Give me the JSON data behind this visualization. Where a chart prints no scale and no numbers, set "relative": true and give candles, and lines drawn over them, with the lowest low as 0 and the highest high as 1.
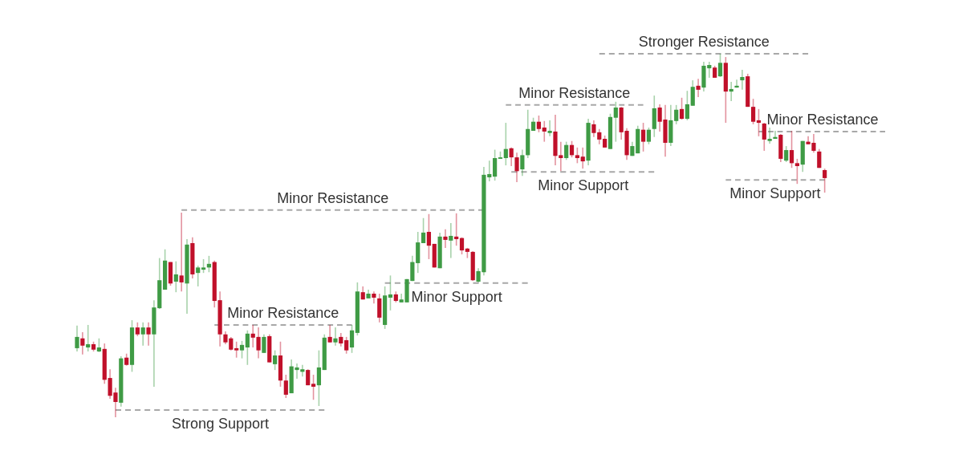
{
  "chart_data": {
    "type": "candlestick",
    "relative": true,
    "line_style": "dashed",
    "categories": [
      null,
      null,
      null,
      null,
      null,
      null,
      null,
      null,
      null,
      null,
      null,
      null,
      null,
      null,
      null,
      null,
      null,
      null,
      null,
      null,
      null,
      null,
      null,
      null,
      null,
      null,
      null,
      null,
      null,
      null,
      null,
      null,
      null,
      null,
      null,
      null,
      null,
      null,
      null,
      null,
      null,
      null,
      null,
      null,
      null,
      null,
      null,
      null,
      null,
      null,
      null,
      null,
      null,
      null,
      null,
      null,
      null,
      null,
      null,
      null,
      null,
      null,
      null,
      null,
      null,
      null,
      null,
      null,
      null,
      null,
      null,
      null,
      null,
      null,
      null,
      null,
      null,
      null,
      null,
      null,
      null,
      null,
      null,
      null,
      null,
      null,
      null,
      null,
      null,
      null,
      null,
      null,
      null,
      null,
      null,
      null,
      null,
      null,
      null,
      null,
      null,
      null,
      null,
      null,
      null,
      null,
      null,
      null,
      null,
      null,
      null,
      null,
      null,
      null,
      null,
      null,
      null,
      null,
      null,
      null,
      null,
      null,
      null,
      null,
      null,
      null,
      null,
      null,
      null,
      null,
      null,
      null,
      null,
      null,
      null,
      null,
      null,
      null,
      null,
      null,
      null,
      null,
      null,
      null,
      null,
      null,
      null,
      null
    ],
    "ohlc": [
      [
        0.19,
        0.252,
        0.181,
        0.221
      ],
      [
        0.217,
        0.234,
        0.173,
        0.197
      ],
      [
        0.192,
        0.254,
        0.181,
        0.201
      ],
      [
        0.201,
        0.208,
        0.181,
        0.186
      ],
      [
        0.181,
        0.217,
        0.179,
        0.192
      ],
      [
        0.188,
        0.203,
        0.092,
        0.103
      ],
      [
        0.108,
        0.132,
        0.051,
        0.059
      ],
      [
        0.068,
        0.081,
        0,
        0.042
      ],
      [
        0.04,
        0.168,
        0.029,
        0.162
      ],
      [
        0.164,
        0.175,
        0.142,
        0.144
      ],
      [
        0.144,
        0.267,
        0.125,
        0.247
      ],
      [
        0.247,
        0.261,
        0.223,
        0.228
      ],
      [
        0.228,
        0.261,
        0.197,
        0.247
      ],
      [
        0.247,
        0.261,
        0.197,
        0.228
      ],
      [
        0.228,
        0.322,
        0.084,
        0.302
      ],
      [
        0.3,
        0.438,
        0.298,
        0.377
      ],
      [
        0.351,
        0.462,
        0.351,
        0.431
      ],
      [
        0.427,
        0.427,
        0.362,
        0.368
      ],
      [
        0.373,
        0.429,
        0.344,
        0.393
      ],
      [
        0.39,
        0.563,
        0.346,
        0.371
      ],
      [
        0.368,
        0.49,
        0.285,
        0.475
      ],
      [
        0.479,
        0.495,
        0.382,
        0.393
      ],
      [
        0.397,
        0.417,
        0.36,
        0.412
      ],
      [
        0.406,
        0.435,
        0.397,
        0.412
      ],
      [
        0.412,
        0.444,
        0.399,
        0.422
      ],
      [
        0.427,
        0.431,
        0.302,
        0.32
      ],
      [
        0.322,
        0.346,
        0.195,
        0.228
      ],
      [
        0.228,
        0.236,
        0.201,
        0.206
      ],
      [
        0.217,
        0.221,
        0.184,
        0.186
      ],
      [
        0.19,
        0.208,
        0.164,
        0.184
      ],
      [
        0.184,
        0.21,
        0.162,
        0.199
      ],
      [
        0.192,
        0.239,
        0.144,
        0.23
      ],
      [
        0.23,
        0.254,
        0.192,
        0.219
      ],
      [
        0.221,
        0.247,
        0.162,
        0.184
      ],
      [
        0.177,
        0.228,
        0.177,
        0.221
      ],
      [
        0.223,
        0.228,
        0.151,
        0.151
      ],
      [
        0.146,
        0.184,
        0.13,
        0.17
      ],
      [
        0.17,
        0.208,
        0.084,
        0.101
      ],
      [
        0.101,
        0.117,
        0.053,
        0.062
      ],
      [
        0.066,
        0.159,
        0.066,
        0.14
      ],
      [
        0.13,
        0.148,
        0.106,
        0.137
      ],
      [
        0.125,
        0.144,
        0.112,
        0.132
      ],
      [
        0.13,
        0.132,
        0.088,
        0.088
      ],
      [
        0.092,
        0.117,
        0.048,
        0.084
      ],
      [
        0.088,
        0.184,
        0.031,
        0.137
      ],
      [
        0.13,
        0.228,
        0.13,
        0.219
      ],
      [
        0.221,
        0.254,
        0.206,
        0.206
      ],
      [
        0.206,
        0.247,
        0.197,
        0.217
      ],
      [
        0.221,
        0.232,
        0.195,
        0.203
      ],
      [
        0.212,
        0.221,
        0.175,
        0.184
      ],
      [
        0.192,
        0.254,
        0.177,
        0.239
      ],
      [
        0.232,
        0.371,
        0.225,
        0.346
      ],
      [
        0.344,
        0.36,
        0.324,
        0.324
      ],
      [
        0.327,
        0.351,
        0.327,
        0.34
      ],
      [
        0.34,
        0.346,
        0.313,
        0.329
      ],
      [
        0.327,
        0.34,
        0.261,
        0.274
      ],
      [
        0.254,
        0.36,
        0.243,
        0.335
      ],
      [
        0.329,
        0.39,
        0.294,
        0.338
      ],
      [
        0.338,
        0.346,
        0.316,
        0.32
      ],
      [
        0.316,
        0.34,
        0.316,
        0.324
      ],
      [
        0.316,
        0.38,
        0.316,
        0.38
      ],
      [
        0.375,
        0.444,
        0.375,
        0.427
      ],
      [
        0.424,
        0.51,
        0.397,
        0.481
      ],
      [
        0.479,
        0.548,
        0.479,
        0.508
      ],
      [
        0.51,
        0.559,
        0.435,
        0.472
      ],
      [
        0.477,
        0.477,
        0.412,
        0.412
      ],
      [
        0.41,
        0.508,
        0.41,
        0.497
      ],
      [
        0.497,
        0.517,
        0.466,
        0.488
      ],
      [
        0.486,
        0.534,
        0.438,
        0.499
      ],
      [
        0.497,
        0.561,
        0.472,
        0.49
      ],
      [
        0.493,
        0.495,
        0.448,
        0.459
      ],
      [
        0.464,
        0.466,
        0.438,
        0.455
      ],
      [
        0.455,
        0.457,
        0.375,
        0.377
      ],
      [
        0.373,
        0.41,
        0.371,
        0.402
      ],
      [
        0.399,
        0.689,
        0.39,
        0.667
      ],
      [
        0.66,
        0.706,
        0.649,
        0.669
      ],
      [
        0.662,
        0.736,
        0.651,
        0.713
      ],
      [
        0.711,
        0.731,
        0.711,
        0.715
      ],
      [
        0.713,
        0.81,
        0.693,
        0.738
      ],
      [
        0.74,
        0.742,
        0.691,
        0.715
      ],
      [
        0.715,
        0.728,
        0.647,
        0.677
      ],
      [
        0.682,
        0.736,
        0.664,
        0.721
      ],
      [
        0.721,
        0.846,
        0.713,
        0.793
      ],
      [
        0.788,
        0.824,
        0.788,
        0.813
      ],
      [
        0.813,
        0.83,
        0.784,
        0.793
      ],
      [
        0.797,
        0.815,
        0.758,
        0.786
      ],
      [
        0.782,
        0.817,
        0.773,
        0.788
      ],
      [
        0.786,
        0.832,
        0.693,
        0.719
      ],
      [
        0.721,
        0.758,
        0.677,
        0.713
      ],
      [
        0.713,
        0.758,
        0.708,
        0.749
      ],
      [
        0.749,
        0.76,
        0.715,
        0.721
      ],
      [
        0.721,
        0.742,
        0.699,
        0.713
      ],
      [
        0.717,
        0.742,
        0.684,
        0.704
      ],
      [
        0.706,
        0.821,
        0.693,
        0.81
      ],
      [
        0.806,
        0.817,
        0.771,
        0.782
      ],
      [
        0.784,
        0.793,
        0.751,
        0.764
      ],
      [
        0.766,
        0.775,
        0.742,
        0.742
      ],
      [
        0.738,
        0.835,
        0.738,
        0.826
      ],
      [
        0.824,
        0.868,
        0.758,
        0.852
      ],
      [
        0.852,
        0.854,
        0.764,
        0.784
      ],
      [
        0.788,
        0.795,
        0.708,
        0.721
      ],
      [
        0.719,
        0.758,
        0.719,
        0.746
      ],
      [
        0.726,
        0.802,
        0.726,
        0.793
      ],
      [
        0.791,
        0.81,
        0.731,
        0.758
      ],
      [
        0.758,
        0.797,
        0.751,
        0.791
      ],
      [
        0.793,
        0.885,
        0.771,
        0.85
      ],
      [
        0.852,
        0.861,
        0.786,
        0.813
      ],
      [
        0.819,
        0.859,
        0.717,
        0.755
      ],
      [
        0.755,
        0.859,
        0.746,
        0.817
      ],
      [
        0.815,
        0.859,
        0.806,
        0.846
      ],
      [
        0.848,
        0.879,
        0.819,
        0.821
      ],
      [
        0.821,
        0.898,
        0.817,
        0.861
      ],
      [
        0.857,
        0.927,
        0.857,
        0.909
      ],
      [
        0.912,
        0.931,
        0.881,
        0.901
      ],
      [
        0.907,
        0.978,
        0.896,
        0.967
      ],
      [
        0.96,
        0.978,
        0.934,
        0.969
      ],
      [
        0.962,
        0.967,
        0.934,
        0.934
      ],
      [
        0.938,
        1,
        0.936,
        0.975
      ],
      [
        0.975,
        0.991,
        0.81,
        0.896
      ],
      [
        0.896,
        0.923,
        0.87,
        0.903
      ],
      [
        0.907,
        0.929,
        0.907,
        0.912
      ],
      [
        0.927,
        0.956,
        0.901,
        0.936
      ],
      [
        0.938,
        0.945,
        0.854,
        0.854
      ],
      [
        0.854,
        0.876,
        0.806,
        0.813
      ],
      [
        0.817,
        0.848,
        0.773,
        0.81
      ],
      [
        0.808,
        0.81,
        0.733,
        0.764
      ],
      [
        0.76,
        0.797,
        0.753,
        0.766
      ],
      [
        0.766,
        0.788,
        0.766,
        0.771
      ],
      [
        0.777,
        0.779,
        0.702,
        0.711
      ],
      [
        0.706,
        0.746,
        0.702,
        0.735
      ],
      [
        0.735,
        0.788,
        0.686,
        0.699
      ],
      [
        0.699,
        0.711,
        0.642,
        0.691
      ],
      [
        0.695,
        0.76,
        0.675,
        0.76
      ],
      [
        0.758,
        0.773,
        0.751,
        0.751
      ],
      [
        0.755,
        0.779,
        0.728,
        0.733
      ],
      [
        0.731,
        0.738,
        0.686,
        0.686
      ],
      [
        0.68,
        0.684,
        0.618,
        0.658
      ],
      null,
      null,
      null,
      null,
      null,
      null,
      null,
      null,
      null,
      null,
      null
    ],
    "colors": [
      "#3f9b45",
      "#c0102a",
      "#3f9b45",
      "#c0102a",
      "#3f9b45",
      "#c0102a",
      "#c0102a",
      "#c0102a",
      "#3f9b45",
      "#c0102a",
      "#3f9b45",
      "#c0102a",
      "#3f9b45",
      "#c0102a",
      "#3f9b45",
      "#3f9b45",
      "#3f9b45",
      "#c0102a",
      "#3f9b45",
      "#c0102a",
      "#3f9b45",
      "#c0102a",
      "#3f9b45",
      "#3f9b45",
      "#3f9b45",
      "#c0102a",
      "#c0102a",
      "#c0102a",
      "#c0102a",
      "#c0102a",
      "#3f9b45",
      "#3f9b45",
      "#c0102a",
      "#c0102a",
      "#3f9b45",
      "#c0102a",
      "#3f9b45",
      "#c0102a",
      "#c0102a",
      "#3f9b45",
      "#3f9b45",
      "#3f9b45",
      "#c0102a",
      "#c0102a",
      "#3f9b45",
      "#3f9b45",
      "#c0102a",
      "#3f9b45",
      "#c0102a",
      "#c0102a",
      "#3f9b45",
      "#3f9b45",
      "#c0102a",
      "#3f9b45",
      "#c0102a",
      "#c0102a",
      "#3f9b45",
      "#3f9b45",
      "#c0102a",
      "#3f9b45",
      "#3f9b45",
      "#3f9b45",
      "#3f9b45",
      "#3f9b45",
      "#c0102a",
      "#c0102a",
      "#3f9b45",
      "#c0102a",
      "#3f9b45",
      "#c0102a",
      "#c0102a",
      "#c0102a",
      "#c0102a",
      "#3f9b45",
      "#3f9b45",
      "#3f9b45",
      "#3f9b45",
      "#3f9b45",
      "#3f9b45",
      "#c0102a",
      "#c0102a",
      "#3f9b45",
      "#3f9b45",
      "#3f9b45",
      "#c0102a",
      "#c0102a",
      "#3f9b45",
      "#c0102a",
      "#c0102a",
      "#3f9b45",
      "#c0102a",
      "#c0102a",
      "#c0102a",
      "#3f9b45",
      "#c0102a",
      "#c0102a",
      "#c0102a",
      "#3f9b45",
      "#3f9b45",
      "#c0102a",
      "#c0102a",
      "#3f9b45",
      "#3f9b45",
      "#c0102a",
      "#3f9b45",
      "#3f9b45",
      "#c0102a",
      "#c0102a",
      "#3f9b45",
      "#3f9b45",
      "#c0102a",
      "#3f9b45",
      "#3f9b45",
      "#c0102a",
      "#3f9b45",
      "#3f9b45",
      "#c0102a",
      "#3f9b45",
      "#c0102a",
      "#3f9b45",
      "#3f9b45",
      "#3f9b45",
      "#c0102a",
      "#c0102a",
      "#c0102a",
      "#c0102a",
      "#3f9b45",
      "#3f9b45",
      "#c0102a",
      "#3f9b45",
      "#c0102a",
      "#c0102a",
      "#3f9b45",
      "#c0102a",
      "#c0102a",
      "#c0102a",
      "#c0102a",
      null,
      null,
      null,
      null,
      null,
      null,
      null,
      null,
      null,
      null,
      null
    ],
    "series": [
      {
        "type": "line",
        "name": "Strong Support",
        "color": "#a8a8a8",
        "values": [
          null,
          null,
          null,
          null,
          null,
          null,
          null,
          0.02,
          0.02,
          0.02,
          0.02,
          0.02,
          0.02,
          0.02,
          0.02,
          0.02,
          0.02,
          0.02,
          0.02,
          0.02,
          0.02,
          0.02,
          0.02,
          0.02,
          0.02,
          0.02,
          0.02,
          0.02,
          0.02,
          0.02,
          0.02,
          0.02,
          0.02,
          0.02,
          0.02,
          0.02,
          0.02,
          0.02,
          0.02,
          0.02,
          0.02,
          0.02,
          0.02,
          0.02,
          0.02,
          0.02,
          null,
          null,
          null,
          null,
          null,
          null,
          null,
          null,
          null,
          null,
          null,
          null,
          null,
          null,
          null,
          null,
          null,
          null,
          null,
          null,
          null,
          null,
          null,
          null,
          null,
          null,
          null,
          null,
          null,
          null,
          null,
          null,
          null,
          null,
          null,
          null,
          null,
          null,
          null,
          null,
          null,
          null,
          null,
          null,
          null,
          null,
          null,
          null,
          null,
          null,
          null,
          null,
          null,
          null,
          null,
          null,
          null,
          null,
          null,
          null,
          null,
          null,
          null,
          null,
          null,
          null,
          null,
          null,
          null,
          null,
          null,
          null,
          null,
          null,
          null,
          null,
          null,
          null,
          null,
          null,
          null,
          null,
          null,
          null,
          null,
          null,
          null,
          null,
          null,
          null,
          null,
          null,
          null,
          null,
          null,
          null,
          null,
          null,
          null,
          null,
          null,
          null
        ]
      },
      {
        "type": "line",
        "name": "Minor Resistance",
        "color": "#a8a8a8",
        "values": [
          null,
          null,
          null,
          null,
          null,
          null,
          null,
          null,
          null,
          null,
          null,
          null,
          null,
          null,
          null,
          null,
          null,
          null,
          null,
          0.57,
          0.57,
          0.57,
          0.57,
          0.57,
          0.57,
          0.57,
          0.57,
          0.57,
          0.57,
          0.57,
          0.57,
          0.57,
          0.57,
          0.57,
          0.57,
          0.57,
          0.57,
          0.57,
          0.57,
          0.57,
          0.57,
          0.57,
          0.57,
          0.57,
          0.57,
          0.57,
          0.57,
          0.57,
          0.57,
          0.57,
          0.57,
          0.57,
          0.57,
          0.57,
          0.57,
          0.57,
          0.57,
          0.57,
          0.57,
          0.57,
          0.57,
          0.57,
          0.57,
          0.57,
          0.57,
          0.57,
          0.57,
          0.57,
          0.57,
          0.57,
          0.57,
          0.57,
          0.57,
          0.57,
          0.57,
          null,
          null,
          null,
          null,
          null,
          null,
          null,
          null,
          null,
          null,
          null,
          null,
          null,
          null,
          null,
          null,
          null,
          null,
          null,
          null,
          null,
          null,
          null,
          null,
          null,
          null,
          null,
          null,
          null,
          null,
          null,
          null,
          null,
          null,
          null,
          null,
          null,
          null,
          null,
          null,
          null,
          null,
          null,
          null,
          null,
          null,
          null,
          null,
          null,
          null,
          null,
          null,
          null,
          null,
          null,
          null,
          null,
          null,
          null,
          null,
          null,
          null,
          null,
          null,
          null,
          null,
          null,
          null,
          null,
          null,
          null,
          null,
          null
        ]
      },
      {
        "type": "line",
        "name": "Minor Resistance",
        "color": "#a8a8a8",
        "values": [
          null,
          null,
          null,
          null,
          null,
          null,
          null,
          null,
          null,
          null,
          null,
          null,
          null,
          null,
          null,
          null,
          null,
          null,
          null,
          null,
          null,
          null,
          null,
          null,
          null,
          0.254,
          0.254,
          0.254,
          0.254,
          0.254,
          0.254,
          0.254,
          0.254,
          0.254,
          0.254,
          0.254,
          0.254,
          0.254,
          0.254,
          0.254,
          0.254,
          0.254,
          0.254,
          0.254,
          0.254,
          0.254,
          0.254,
          0.254,
          0.254,
          0.254,
          0.254,
          null,
          null,
          null,
          null,
          null,
          null,
          null,
          null,
          null,
          null,
          null,
          null,
          null,
          null,
          null,
          null,
          null,
          null,
          null,
          null,
          null,
          null,
          null,
          null,
          null,
          null,
          null,
          null,
          null,
          null,
          null,
          null,
          null,
          null,
          null,
          null,
          null,
          null,
          null,
          null,
          null,
          null,
          null,
          null,
          null,
          null,
          null,
          null,
          null,
          null,
          null,
          null,
          null,
          null,
          null,
          null,
          null,
          null,
          null,
          null,
          null,
          null,
          null,
          null,
          null,
          null,
          null,
          null,
          null,
          null,
          null,
          null,
          null,
          null,
          null,
          null,
          null,
          null,
          null,
          null,
          null,
          null,
          null,
          null,
          null,
          null,
          null,
          null,
          null,
          null,
          null,
          null,
          null,
          null,
          null,
          null,
          null
        ]
      },
      {
        "type": "line",
        "name": "Minor Support",
        "color": "#a8a8a8",
        "values": [
          null,
          null,
          null,
          null,
          null,
          null,
          null,
          null,
          null,
          null,
          null,
          null,
          null,
          null,
          null,
          null,
          null,
          null,
          null,
          null,
          null,
          null,
          null,
          null,
          null,
          null,
          null,
          null,
          null,
          null,
          null,
          null,
          null,
          null,
          null,
          null,
          null,
          null,
          null,
          null,
          null,
          null,
          null,
          null,
          null,
          null,
          null,
          null,
          null,
          null,
          null,
          null,
          null,
          null,
          null,
          null,
          0.369,
          0.369,
          0.369,
          0.369,
          0.369,
          0.369,
          0.369,
          0.369,
          0.369,
          0.369,
          0.369,
          0.369,
          0.369,
          0.369,
          0.369,
          0.369,
          0.369,
          0.369,
          0.369,
          0.369,
          0.369,
          0.369,
          0.369,
          0.369,
          0.369,
          0.369,
          0.369,
          null,
          null,
          null,
          null,
          null,
          null,
          null,
          null,
          null,
          null,
          null,
          null,
          null,
          null,
          null,
          null,
          null,
          null,
          null,
          null,
          null,
          null,
          null,
          null,
          null,
          null,
          null,
          null,
          null,
          null,
          null,
          null,
          null,
          null,
          null,
          null,
          null,
          null,
          null,
          null,
          null,
          null,
          null,
          null,
          null,
          null,
          null,
          null,
          null,
          null,
          null,
          null,
          null,
          null,
          null,
          null,
          null,
          null,
          null,
          null,
          null,
          null,
          null,
          null,
          null
        ]
      },
      {
        "type": "line",
        "name": "Minor Resistance",
        "color": "#a8a8a8",
        "values": [
          null,
          null,
          null,
          null,
          null,
          null,
          null,
          null,
          null,
          null,
          null,
          null,
          null,
          null,
          null,
          null,
          null,
          null,
          null,
          null,
          null,
          null,
          null,
          null,
          null,
          null,
          null,
          null,
          null,
          null,
          null,
          null,
          null,
          null,
          null,
          null,
          null,
          null,
          null,
          null,
          null,
          null,
          null,
          null,
          null,
          null,
          null,
          null,
          null,
          null,
          null,
          null,
          null,
          null,
          null,
          null,
          null,
          null,
          null,
          null,
          null,
          null,
          null,
          null,
          null,
          null,
          null,
          null,
          null,
          null,
          null,
          null,
          null,
          null,
          null,
          null,
          null,
          null,
          0.859,
          0.859,
          0.859,
          0.859,
          0.859,
          0.859,
          0.859,
          0.859,
          0.859,
          0.859,
          0.859,
          0.859,
          0.859,
          0.859,
          0.859,
          0.859,
          0.859,
          0.859,
          0.859,
          0.859,
          0.859,
          0.859,
          0.859,
          0.859,
          0.859,
          0.859,
          null,
          null,
          null,
          null,
          null,
          null,
          null,
          null,
          null,
          null,
          null,
          null,
          null,
          null,
          null,
          null,
          null,
          null,
          null,
          null,
          null,
          null,
          null,
          null,
          null,
          null,
          null,
          null,
          null,
          null,
          null,
          null,
          null,
          null,
          null,
          null,
          null,
          null,
          null,
          null,
          null,
          null,
          null,
          null
        ]
      },
      {
        "type": "line",
        "name": "Minor Support",
        "color": "#a8a8a8",
        "values": [
          null,
          null,
          null,
          null,
          null,
          null,
          null,
          null,
          null,
          null,
          null,
          null,
          null,
          null,
          null,
          null,
          null,
          null,
          null,
          null,
          null,
          null,
          null,
          null,
          null,
          null,
          null,
          null,
          null,
          null,
          null,
          null,
          null,
          null,
          null,
          null,
          null,
          null,
          null,
          null,
          null,
          null,
          null,
          null,
          null,
          null,
          null,
          null,
          null,
          null,
          null,
          null,
          null,
          null,
          null,
          null,
          null,
          null,
          null,
          null,
          null,
          null,
          null,
          null,
          null,
          null,
          null,
          null,
          null,
          null,
          null,
          null,
          null,
          null,
          null,
          null,
          null,
          null,
          null,
          0.675,
          0.675,
          0.675,
          0.675,
          0.675,
          0.675,
          0.675,
          0.675,
          0.675,
          0.675,
          0.675,
          0.675,
          0.675,
          0.675,
          0.675,
          0.675,
          0.675,
          0.675,
          0.675,
          0.675,
          0.675,
          0.675,
          0.675,
          0.675,
          0.675,
          0.675,
          0.675,
          null,
          null,
          null,
          null,
          null,
          null,
          null,
          null,
          null,
          null,
          null,
          null,
          null,
          null,
          null,
          null,
          null,
          null,
          null,
          null,
          null,
          null,
          null,
          null,
          null,
          null,
          null,
          null,
          null,
          null,
          null,
          null,
          null,
          null,
          null,
          null,
          null,
          null,
          null,
          null,
          null,
          null
        ]
      },
      {
        "type": "line",
        "name": "Stronger Resistance",
        "color": "#a8a8a8",
        "values": [
          null,
          null,
          null,
          null,
          null,
          null,
          null,
          null,
          null,
          null,
          null,
          null,
          null,
          null,
          null,
          null,
          null,
          null,
          null,
          null,
          null,
          null,
          null,
          null,
          null,
          null,
          null,
          null,
          null,
          null,
          null,
          null,
          null,
          null,
          null,
          null,
          null,
          null,
          null,
          null,
          null,
          null,
          null,
          null,
          null,
          null,
          null,
          null,
          null,
          null,
          null,
          null,
          null,
          null,
          null,
          null,
          null,
          null,
          null,
          null,
          null,
          null,
          null,
          null,
          null,
          null,
          null,
          null,
          null,
          null,
          null,
          null,
          null,
          null,
          null,
          null,
          null,
          null,
          null,
          null,
          null,
          null,
          null,
          null,
          null,
          null,
          null,
          null,
          null,
          null,
          null,
          null,
          null,
          null,
          null,
          1,
          1,
          1,
          1,
          1,
          1,
          1,
          1,
          1,
          1,
          1,
          1,
          1,
          1,
          1,
          1,
          1,
          1,
          1,
          1,
          1,
          1,
          1,
          1,
          1,
          1,
          1,
          1,
          1,
          1,
          1,
          1,
          1,
          1,
          1,
          1,
          1,
          1,
          1,
          null,
          null,
          null,
          null,
          null,
          null,
          null,
          null,
          null,
          null,
          null,
          null,
          null,
          null
        ]
      },
      {
        "type": "line",
        "name": "Minor Resistance",
        "color": "#a8a8a8",
        "values": [
          null,
          null,
          null,
          null,
          null,
          null,
          null,
          null,
          null,
          null,
          null,
          null,
          null,
          null,
          null,
          null,
          null,
          null,
          null,
          null,
          null,
          null,
          null,
          null,
          null,
          null,
          null,
          null,
          null,
          null,
          null,
          null,
          null,
          null,
          null,
          null,
          null,
          null,
          null,
          null,
          null,
          null,
          null,
          null,
          null,
          null,
          null,
          null,
          null,
          null,
          null,
          null,
          null,
          null,
          null,
          null,
          null,
          null,
          null,
          null,
          null,
          null,
          null,
          null,
          null,
          null,
          null,
          null,
          null,
          null,
          null,
          null,
          null,
          null,
          null,
          null,
          null,
          null,
          null,
          null,
          null,
          null,
          null,
          null,
          null,
          null,
          null,
          null,
          null,
          null,
          null,
          null,
          null,
          null,
          null,
          null,
          null,
          null,
          null,
          null,
          null,
          null,
          null,
          null,
          null,
          null,
          null,
          null,
          null,
          null,
          null,
          null,
          null,
          null,
          null,
          null,
          null,
          null,
          null,
          null,
          null,
          null,
          null,
          null,
          0.786,
          0.786,
          0.786,
          0.786,
          0.786,
          0.786,
          0.786,
          0.786,
          0.786,
          0.786,
          0.786,
          0.786,
          0.786,
          0.786,
          0.786,
          0.786,
          0.786,
          0.786,
          0.786,
          0.786,
          0.786,
          0.786,
          0.786,
          0.786
        ]
      },
      {
        "type": "line",
        "name": "Minor Support",
        "color": "#a8a8a8",
        "values": [
          null,
          null,
          null,
          null,
          null,
          null,
          null,
          null,
          null,
          null,
          null,
          null,
          null,
          null,
          null,
          null,
          null,
          null,
          null,
          null,
          null,
          null,
          null,
          null,
          null,
          null,
          null,
          null,
          null,
          null,
          null,
          null,
          null,
          null,
          null,
          null,
          null,
          null,
          null,
          null,
          null,
          null,
          null,
          null,
          null,
          null,
          null,
          null,
          null,
          null,
          null,
          null,
          null,
          null,
          null,
          null,
          null,
          null,
          null,
          null,
          null,
          null,
          null,
          null,
          null,
          null,
          null,
          null,
          null,
          null,
          null,
          null,
          null,
          null,
          null,
          null,
          null,
          null,
          null,
          null,
          null,
          null,
          null,
          null,
          null,
          null,
          null,
          null,
          null,
          null,
          null,
          null,
          null,
          null,
          null,
          null,
          null,
          null,
          null,
          null,
          null,
          null,
          null,
          null,
          null,
          null,
          null,
          null,
          null,
          null,
          null,
          null,
          null,
          null,
          null,
          null,
          null,
          null,
          0.653,
          0.653,
          0.653,
          0.653,
          0.653,
          0.653,
          0.653,
          0.653,
          0.653,
          0.653,
          0.653,
          0.653,
          0.653,
          0.653,
          0.653,
          0.653,
          0.653,
          0.653,
          0.653,
          null,
          null,
          null,
          null,
          null,
          null,
          null,
          null,
          null,
          null,
          null
        ]
      }
    ]
  }
}
